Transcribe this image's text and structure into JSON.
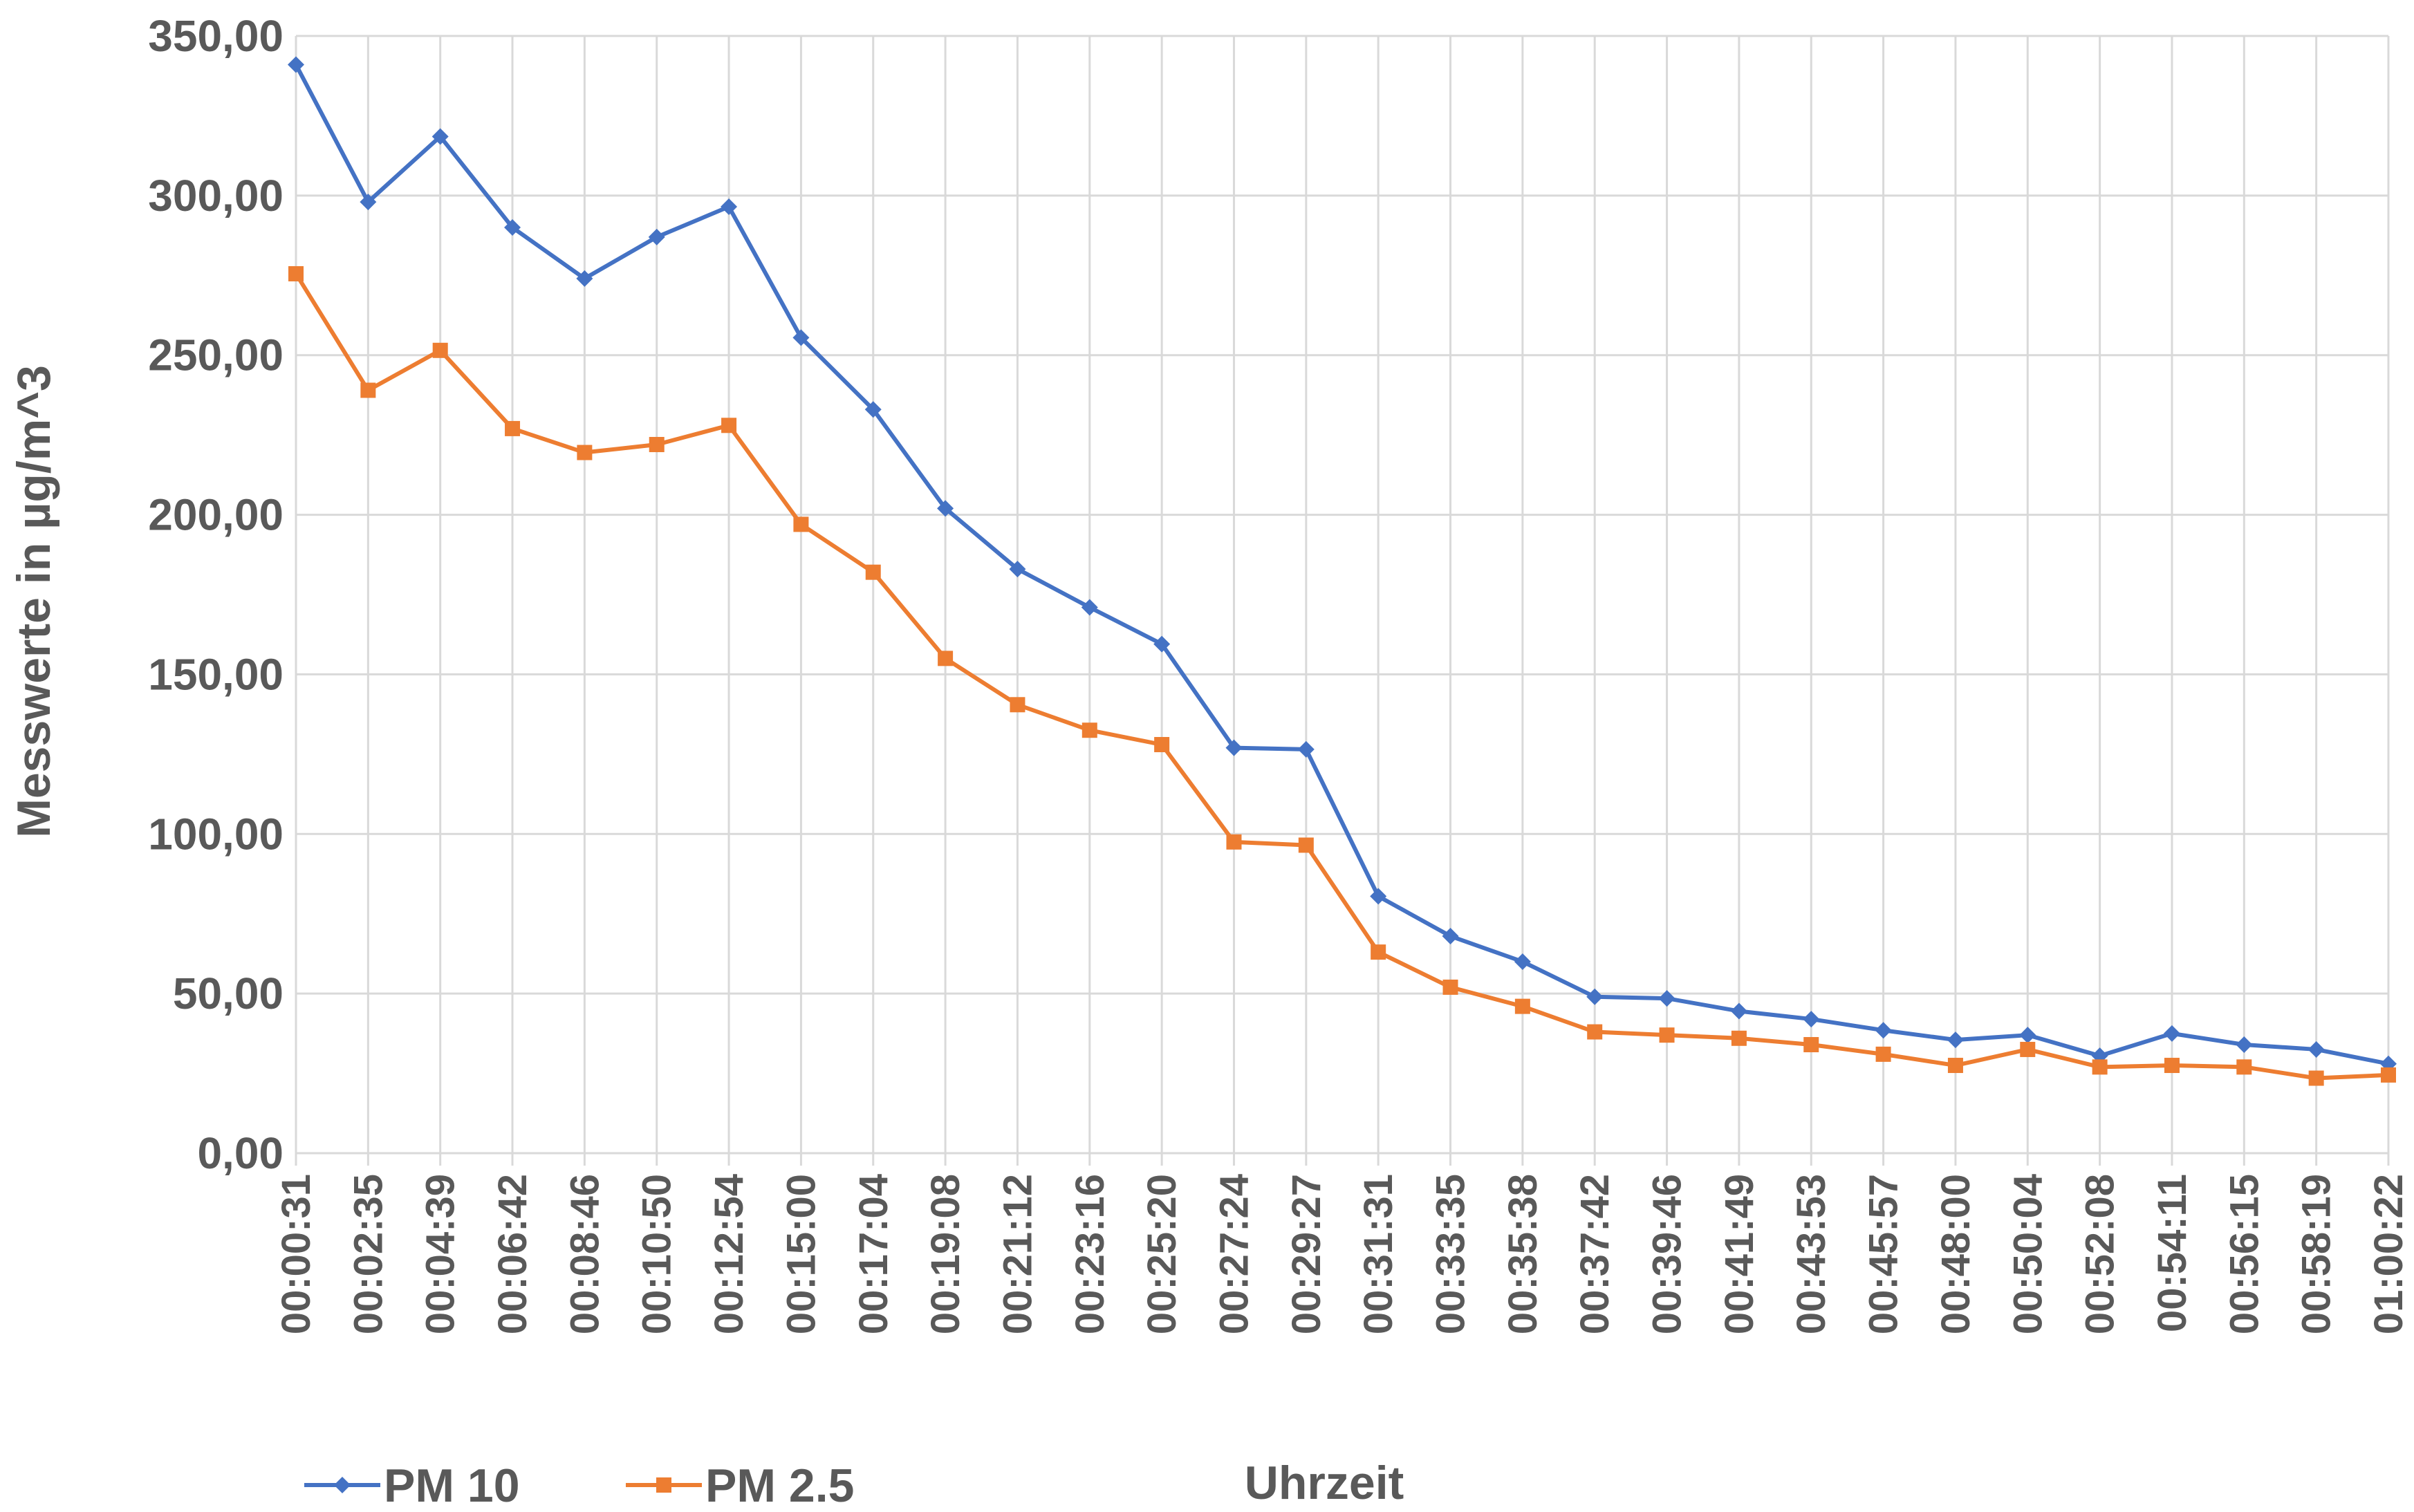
{
  "chart_data": {
    "type": "line",
    "title": "",
    "xlabel": "Uhrzeit",
    "ylabel": "Messwerte in µg/m^3",
    "ylim": [
      0,
      350
    ],
    "yticks": [
      "0,00",
      "50,00",
      "100,00",
      "150,00",
      "200,00",
      "250,00",
      "300,00",
      "350,00"
    ],
    "grid": true,
    "legend_position": "bottom-left",
    "categories": [
      "00:00:31",
      "00:02:35",
      "00:04:39",
      "00:06:42",
      "00:08:46",
      "00:10:50",
      "00:12:54",
      "00:15:00",
      "00:17:04",
      "00:19:08",
      "00:21:12",
      "00:23:16",
      "00:25:20",
      "00:27:24",
      "00:29:27",
      "00:31:31",
      "00:33:35",
      "00:35:38",
      "00:37:42",
      "00:39:46",
      "00:41:49",
      "00:43:53",
      "00:45:57",
      "00:48:00",
      "00:50:04",
      "00:52:08",
      "00:54:11",
      "00:56:15",
      "00:58:19",
      "01:00:22"
    ],
    "series": [
      {
        "name": "PM 10",
        "color": "#4472C4",
        "marker": "diamond",
        "values": [
          341,
          298,
          318.5,
          290,
          274,
          287,
          296.5,
          255.5,
          233,
          202,
          183,
          171,
          159.5,
          127,
          126.5,
          80.5,
          68,
          60,
          49,
          48.5,
          44.5,
          42,
          38.5,
          35.5,
          37,
          30.5,
          37.5,
          34,
          32.5,
          28
        ]
      },
      {
        "name": "PM 2.5",
        "color": "#ED7D31",
        "marker": "square",
        "values": [
          275.5,
          239,
          251.5,
          227,
          219.5,
          222,
          228,
          197,
          182,
          155,
          140.5,
          132.5,
          128,
          97.5,
          96.5,
          63,
          52,
          46,
          38,
          37,
          36,
          34,
          31,
          27.5,
          32.5,
          27,
          27.5,
          27,
          23.5,
          24.5
        ]
      }
    ]
  }
}
